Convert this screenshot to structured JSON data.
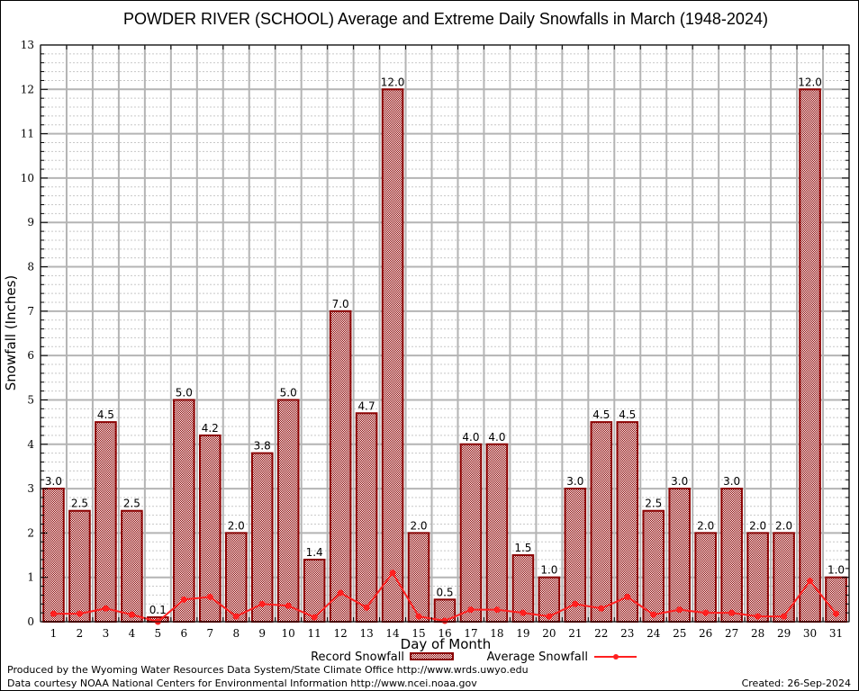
{
  "chart_data": {
    "type": "bar",
    "title": "POWDER RIVER (SCHOOL) Average and Extreme Daily Snowfalls in March (1948-2024)",
    "xlabel": "Day of Month",
    "ylabel": "Snowfall (Inches)",
    "ylim": [
      0,
      13
    ],
    "yticks": [
      0,
      1,
      2,
      3,
      4,
      5,
      6,
      7,
      8,
      9,
      10,
      11,
      12,
      13
    ],
    "grid": true,
    "legend_position": "bottom-center",
    "categories": [
      "1",
      "2",
      "3",
      "4",
      "5",
      "6",
      "7",
      "8",
      "9",
      "10",
      "11",
      "12",
      "13",
      "14",
      "15",
      "16",
      "17",
      "18",
      "19",
      "20",
      "21",
      "22",
      "23",
      "24",
      "25",
      "26",
      "27",
      "28",
      "29",
      "30",
      "31"
    ],
    "series": [
      {
        "name": "Record Snowfall",
        "type": "bar",
        "color": "#8b0000",
        "values": [
          3.0,
          2.5,
          4.5,
          2.5,
          0.1,
          5.0,
          4.2,
          2.0,
          3.8,
          5.0,
          1.4,
          7.0,
          4.7,
          12.0,
          2.0,
          0.5,
          4.0,
          4.0,
          1.5,
          1.0,
          3.0,
          4.5,
          4.5,
          2.5,
          3.0,
          2.0,
          3.0,
          2.0,
          2.0,
          12.0,
          1.0
        ],
        "labels": [
          "3.0",
          "2.5",
          "4.5",
          "2.5",
          "0.1",
          "5.0",
          "4.2",
          "2.0",
          "3.8",
          "5.0",
          "1.4",
          "7.0",
          "4.7",
          "12.0",
          "2.0",
          "0.5",
          "4.0",
          "4.0",
          "1.5",
          "1.0",
          "3.0",
          "4.5",
          "4.5",
          "2.5",
          "3.0",
          "2.0",
          "3.0",
          "2.0",
          "2.0",
          "12.0",
          "1.0"
        ]
      },
      {
        "name": "Average Snowfall",
        "type": "line",
        "color": "#ff2020",
        "values": [
          0.18,
          0.18,
          0.3,
          0.16,
          0.0,
          0.5,
          0.56,
          0.12,
          0.4,
          0.36,
          0.1,
          0.65,
          0.32,
          1.1,
          0.12,
          0.02,
          0.27,
          0.27,
          0.2,
          0.12,
          0.4,
          0.3,
          0.56,
          0.16,
          0.27,
          0.2,
          0.2,
          0.12,
          0.12,
          0.92,
          0.18
        ]
      }
    ]
  },
  "footer": {
    "produced_by": "Produced by the Wyoming Water Resources Data System/State Climate Office http://www.wrds.uwyo.edu",
    "data_courtesy": "Data courtesy NOAA National Centers for Environmental Information http://www.ncei.noaa.gov",
    "created": "Created: 26-Sep-2024"
  }
}
